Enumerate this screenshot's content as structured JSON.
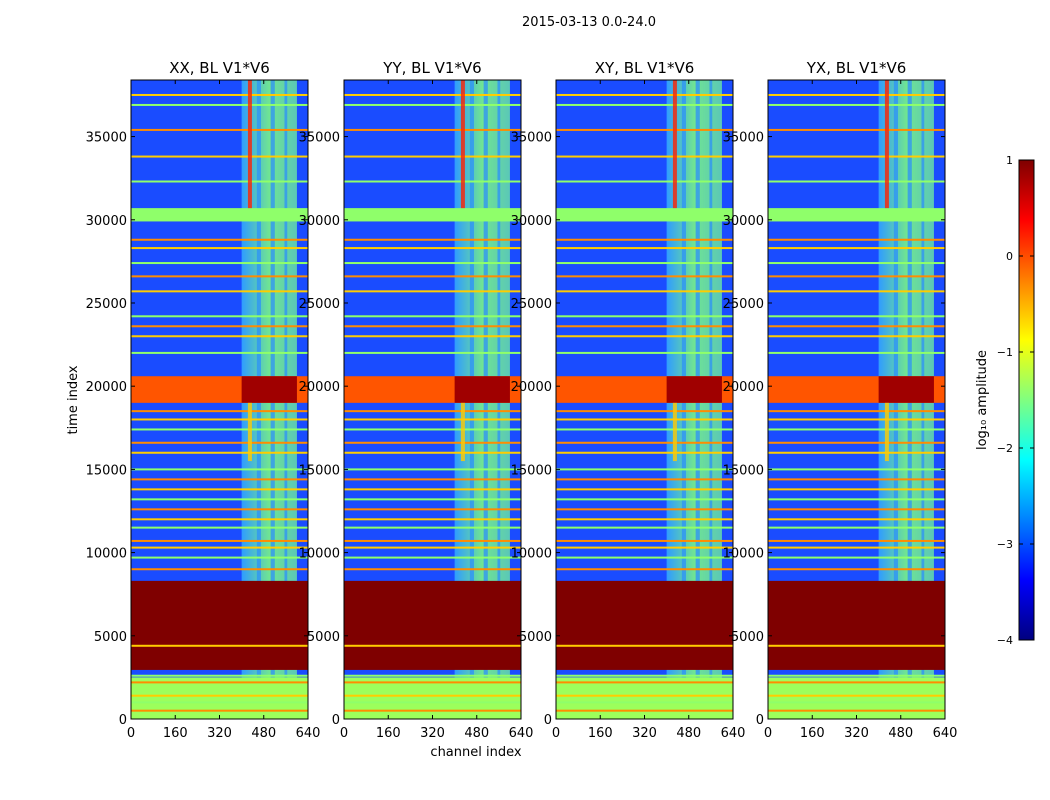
{
  "chart_data": {
    "type": "heatmap",
    "suptitle": "2015-03-13 0.0-24.0",
    "xlabel": "channel index",
    "ylabel": "time index",
    "xlim": [
      0,
      640
    ],
    "ylim": [
      0,
      38400
    ],
    "x_ticks": [
      0,
      160,
      320,
      480,
      640
    ],
    "y_ticks": [
      0,
      5000,
      10000,
      15000,
      20000,
      25000,
      30000,
      35000
    ],
    "panels": [
      {
        "title": "XX, BL V1*V6",
        "rfi_column_channel": 430
      },
      {
        "title": "YY, BL V1*V6",
        "rfi_column_channel": 430
      },
      {
        "title": "XY, BL V1*V6",
        "rfi_column_channel": 430
      },
      {
        "title": "YX, BL V1*V6",
        "rfi_column_channel": 430
      }
    ],
    "features": {
      "band_channels": [
        400,
        600
      ],
      "vertical_band_edges": [
        400,
        455,
        470,
        505,
        520,
        555,
        565,
        600
      ],
      "flagged_block_time": [
        2950,
        8300
      ],
      "low_block_time": [
        0,
        2500
      ],
      "strong_rfi_time": [
        19000,
        20600
      ],
      "gap_band_time": [
        29900,
        30700
      ],
      "horizontal_lines_time": [
        500,
        1000,
        1400,
        2200,
        2600,
        4400,
        9000,
        9700,
        10300,
        10700,
        11500,
        12000,
        12600,
        13200,
        13800,
        14400,
        15000,
        16000,
        16600,
        17400,
        18000,
        18500,
        22000,
        23000,
        23600,
        24200,
        25700,
        26600,
        27400,
        28300,
        28800,
        32300,
        33800,
        35400,
        36900,
        37500
      ]
    },
    "colorbar": {
      "label": "log₁₀ amplitude",
      "range": [
        -4,
        1
      ],
      "ticks": [
        1,
        0,
        -1,
        -2,
        -3,
        -4
      ],
      "tick_labels": [
        "1",
        "0",
        "−1",
        "−2",
        "−3",
        "−4"
      ],
      "colormap": "jet",
      "colors": [
        "#00007f",
        "#0000ff",
        "#0080ff",
        "#00ffff",
        "#80ff80",
        "#ffff00",
        "#ff8000",
        "#ff0000",
        "#7f0000"
      ]
    }
  }
}
